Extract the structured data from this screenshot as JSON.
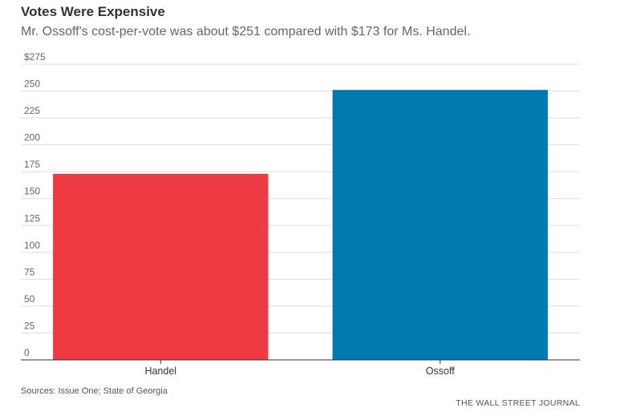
{
  "header": {
    "title": "Votes Were Expensive",
    "subtitle": "Mr. Ossoff's cost-per-vote was about $251 compared with $173 for Ms. Handel."
  },
  "chart_data": {
    "type": "bar",
    "categories": [
      "Handel",
      "Ossoff"
    ],
    "values": [
      173,
      251
    ],
    "colors": [
      "#ee3b43",
      "#0079b0"
    ],
    "ylim": [
      0,
      275
    ],
    "yticks": [
      0,
      25,
      50,
      75,
      100,
      125,
      150,
      175,
      200,
      225,
      250,
      275
    ],
    "ytick_labels": [
      "0",
      "25",
      "50",
      "75",
      "100",
      "125",
      "150",
      "175",
      "200",
      "225",
      "250",
      "$275"
    ],
    "grid": true
  },
  "footer": {
    "source": "Sources: Issue One; State of Georgia",
    "brand": "THE WALL STREET JOURNAL"
  }
}
